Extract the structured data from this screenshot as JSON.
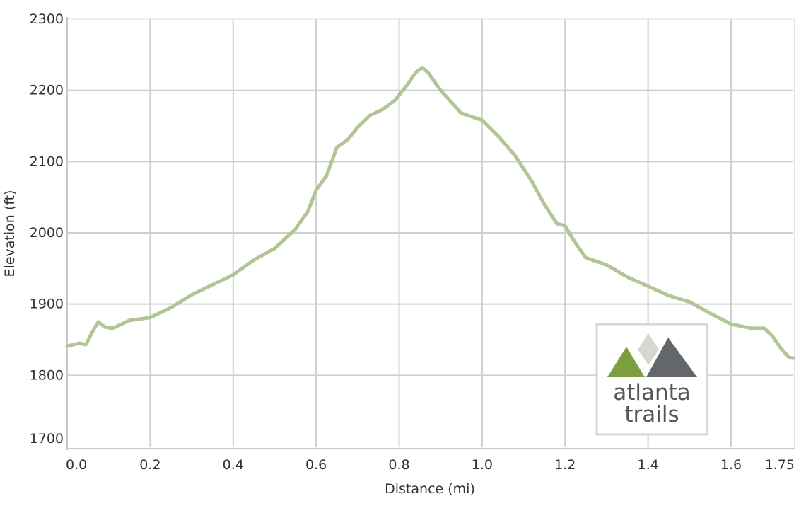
{
  "chart_data": {
    "type": "area",
    "xlabel": "Distance (mi)",
    "ylabel": "Elevation (ft)",
    "xlim": [
      0.0,
      1.75
    ],
    "ylim": [
      1700,
      2300
    ],
    "x_ticks": [
      {
        "value": 0.0,
        "label": "0.0"
      },
      {
        "value": 0.2,
        "label": "0.2"
      },
      {
        "value": 0.4,
        "label": "0.4"
      },
      {
        "value": 0.6,
        "label": "0.6"
      },
      {
        "value": 0.8,
        "label": "0.8"
      },
      {
        "value": 1.0,
        "label": "1.0"
      },
      {
        "value": 1.2,
        "label": "1.2"
      },
      {
        "value": 1.4,
        "label": "1.4"
      },
      {
        "value": 1.6,
        "label": "1.6"
      },
      {
        "value": 1.75,
        "label": "1.75"
      }
    ],
    "y_ticks": [
      {
        "value": 1700,
        "label": "1700"
      },
      {
        "value": 1800,
        "label": "1800"
      },
      {
        "value": 1900,
        "label": "1900"
      },
      {
        "value": 2000,
        "label": "2000"
      },
      {
        "value": 2100,
        "label": "2100"
      },
      {
        "value": 2200,
        "label": "2200"
      },
      {
        "value": 2300,
        "label": "2300"
      }
    ],
    "grid": true,
    "line_color": "#b1c695",
    "series": [
      {
        "x": [
          0.0,
          0.03,
          0.045,
          0.06,
          0.075,
          0.09,
          0.11,
          0.15,
          0.2,
          0.25,
          0.3,
          0.35,
          0.4,
          0.45,
          0.5,
          0.55,
          0.58,
          0.6,
          0.625,
          0.65,
          0.675,
          0.7,
          0.73,
          0.76,
          0.79,
          0.82,
          0.84,
          0.855,
          0.87,
          0.9,
          0.95,
          0.975,
          1.0,
          1.04,
          1.08,
          1.12,
          1.15,
          1.18,
          1.2,
          1.22,
          1.25,
          1.3,
          1.35,
          1.4,
          1.45,
          1.5,
          1.55,
          1.6,
          1.65,
          1.68,
          1.7,
          1.72,
          1.74,
          1.75
        ],
        "y": [
          1841,
          1845,
          1843,
          1860,
          1875,
          1868,
          1866,
          1877,
          1881,
          1895,
          1913,
          1927,
          1941,
          1962,
          1978,
          2005,
          2030,
          2060,
          2080,
          2120,
          2130,
          2148,
          2165,
          2173,
          2186,
          2208,
          2225,
          2232,
          2225,
          2200,
          2168,
          2163,
          2158,
          2135,
          2108,
          2072,
          2040,
          2013,
          2010,
          1990,
          1965,
          1955,
          1938,
          1925,
          1912,
          1903,
          1887,
          1872,
          1866,
          1866,
          1855,
          1838,
          1825,
          1824
        ]
      }
    ]
  },
  "logo": {
    "line1": "atlanta",
    "line2": "trails",
    "green": "#7b9f3e",
    "gray": "#63666a",
    "light_gray": "#d5d7d0"
  }
}
